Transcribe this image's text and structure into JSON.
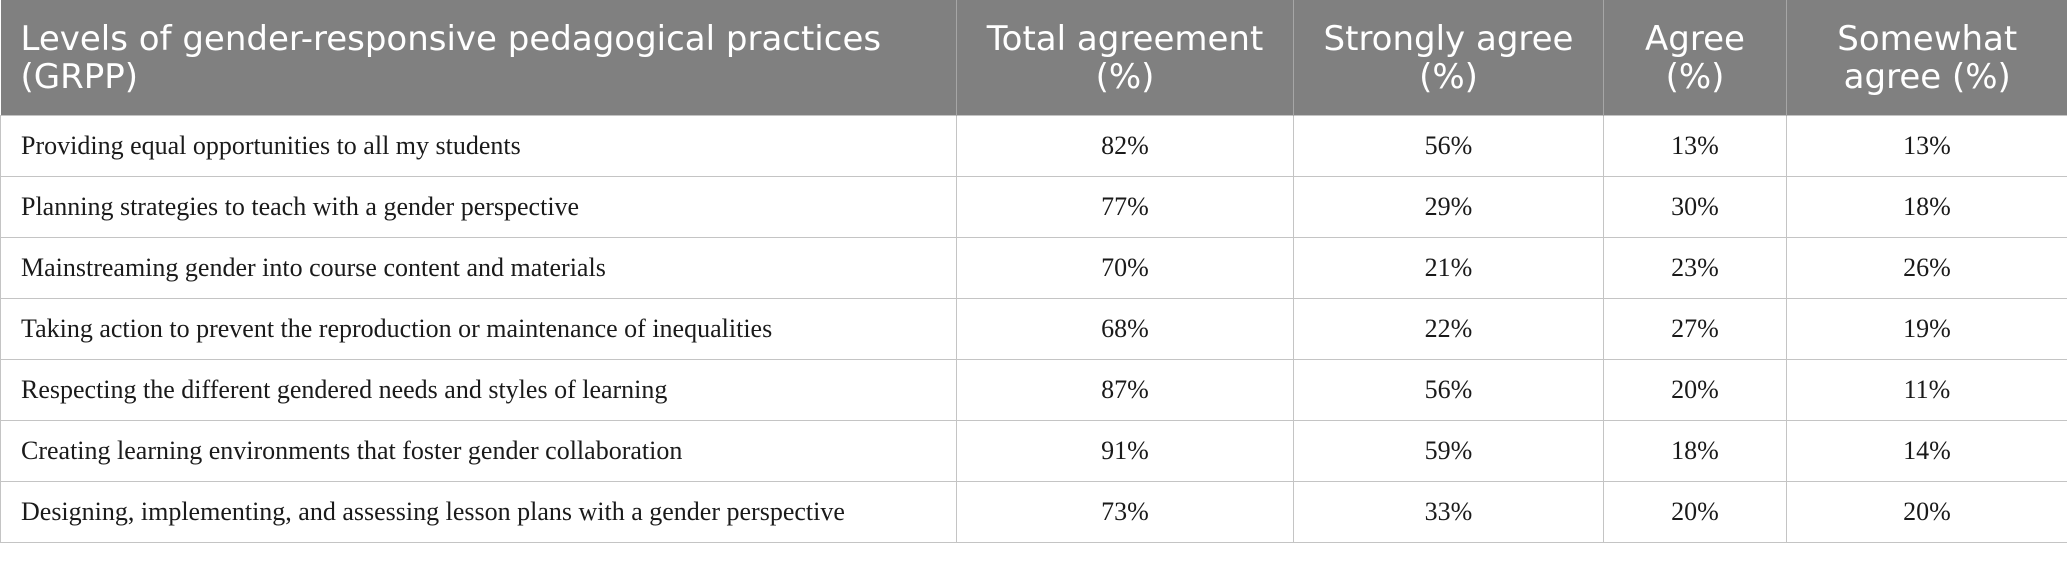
{
  "table": {
    "headers": [
      "Levels of gender-responsive pedagogical practices (GRPP)",
      "Total agreement (%)",
      "Strongly agree (%)",
      "Agree (%)",
      "Somewhat agree (%)"
    ],
    "rows": [
      [
        "Providing equal opportunities to all my students",
        "82%",
        "56%",
        "13%",
        "13%"
      ],
      [
        "Planning strategies to teach with a gender perspective",
        "77%",
        "29%",
        "30%",
        "18%"
      ],
      [
        "Mainstreaming gender into course content and materials",
        "70%",
        "21%",
        "23%",
        "26%"
      ],
      [
        "Taking action to prevent the reproduction or maintenance of inequalities",
        "68%",
        "22%",
        "27%",
        "19%"
      ],
      [
        "Respecting the different gendered needs and styles of learning",
        "87%",
        "56%",
        "20%",
        "11%"
      ],
      [
        "Creating learning environments that foster gender collaboration",
        "91%",
        "59%",
        "18%",
        "14%"
      ],
      [
        "Designing, implementing, and assessing lesson plans with a gender perspective",
        "73%",
        "33%",
        "20%",
        "20%"
      ]
    ]
  },
  "colors": {
    "header_bg": "#808080",
    "header_text": "#ffffff",
    "grid_line": "#c4c4c4",
    "body_text": "#1a1a1a"
  }
}
